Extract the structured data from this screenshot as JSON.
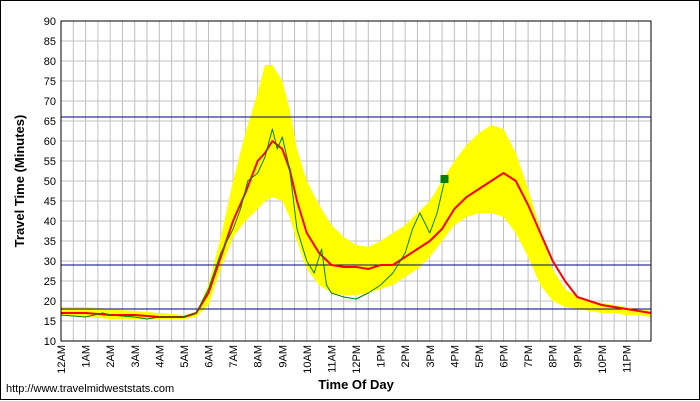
{
  "footer": {
    "url": "http://www.travelmidweststats.com"
  },
  "chart_data": {
    "type": "line",
    "title": "",
    "xlabel": "Time Of Day",
    "ylabel": "Travel Time (Minutes)",
    "ylim": [
      10,
      90
    ],
    "xlim": [
      0,
      24
    ],
    "grid": true,
    "y_ticks": [
      10,
      15,
      20,
      25,
      30,
      35,
      40,
      45,
      50,
      55,
      60,
      65,
      70,
      75,
      80,
      85,
      90
    ],
    "x_ticks": [
      {
        "value": 0,
        "label": "12AM"
      },
      {
        "value": 1,
        "label": "1AM"
      },
      {
        "value": 2,
        "label": "2AM"
      },
      {
        "value": 3,
        "label": "3AM"
      },
      {
        "value": 4,
        "label": "4AM"
      },
      {
        "value": 5,
        "label": "5AM"
      },
      {
        "value": 6,
        "label": "6AM"
      },
      {
        "value": 7,
        "label": "7AM"
      },
      {
        "value": 8,
        "label": "8AM"
      },
      {
        "value": 9,
        "label": "9AM"
      },
      {
        "value": 10,
        "label": "10AM"
      },
      {
        "value": 11,
        "label": "11AM"
      },
      {
        "value": 12,
        "label": "12PM"
      },
      {
        "value": 13,
        "label": "1PM"
      },
      {
        "value": 14,
        "label": "2PM"
      },
      {
        "value": 15,
        "label": "3PM"
      },
      {
        "value": 16,
        "label": "4PM"
      },
      {
        "value": 17,
        "label": "5PM"
      },
      {
        "value": 18,
        "label": "6PM"
      },
      {
        "value": 19,
        "label": "7PM"
      },
      {
        "value": 20,
        "label": "8PM"
      },
      {
        "value": 21,
        "label": "9PM"
      },
      {
        "value": 22,
        "label": "10PM"
      },
      {
        "value": 23,
        "label": "11PM"
      }
    ],
    "reference_lines": [
      {
        "y": 66,
        "color": "#000080"
      },
      {
        "y": 29,
        "color": "#000080"
      },
      {
        "y": 18,
        "color": "#000080"
      }
    ],
    "band": {
      "color": "#ffff00",
      "x": [
        0,
        1,
        2,
        3,
        4,
        5,
        5.5,
        6,
        6.5,
        7,
        7.5,
        8,
        8.3,
        8.6,
        9,
        9.3,
        9.6,
        10,
        10.5,
        11,
        11.5,
        12,
        12.5,
        13,
        13.5,
        14,
        14.5,
        15,
        15.5,
        16,
        16.5,
        17,
        17.5,
        18,
        18.5,
        19,
        19.5,
        20,
        20.5,
        21,
        21.5,
        22,
        22.5,
        23,
        23.5,
        24
      ],
      "upper": [
        18.5,
        18.5,
        18,
        17.5,
        17,
        16.5,
        17,
        24,
        36,
        50,
        62,
        72,
        79,
        79,
        75,
        68,
        58,
        50,
        44,
        39,
        36,
        34,
        33.5,
        35,
        37,
        39,
        42,
        45,
        50,
        55,
        59,
        62,
        64,
        63,
        57,
        48,
        38,
        28,
        23,
        21,
        20,
        19.5,
        19,
        18.5,
        18,
        17.5
      ],
      "lower": [
        16.5,
        16,
        15.5,
        15.5,
        15.5,
        15.5,
        16,
        19,
        28,
        36,
        40,
        43,
        45,
        46,
        45,
        41,
        35,
        28,
        24,
        22,
        21.5,
        21.5,
        22,
        23,
        24,
        26,
        28,
        31,
        35,
        39,
        41,
        42,
        42,
        41,
        37,
        31,
        24,
        20,
        18.5,
        18,
        17.5,
        17,
        17,
        16.5,
        16.5,
        16
      ]
    },
    "series": [
      {
        "color": "#ff0000",
        "width": 2,
        "x": [
          0,
          1,
          2,
          3,
          4,
          5,
          5.5,
          6,
          6.5,
          7,
          7.5,
          8,
          8.3,
          8.6,
          9,
          9.3,
          9.6,
          10,
          10.5,
          11,
          11.5,
          12,
          12.5,
          13,
          13.5,
          14,
          14.5,
          15,
          15.5,
          16,
          16.5,
          17,
          17.5,
          18,
          18.5,
          19,
          19.5,
          20,
          20.5,
          21,
          21.5,
          22,
          22.5,
          23,
          23.5,
          24
        ],
        "y": [
          17,
          17,
          16.5,
          16.5,
          16,
          16,
          17,
          22,
          31,
          40,
          47,
          55,
          57,
          60,
          58,
          53,
          45,
          37,
          32,
          29,
          28.5,
          28.5,
          28,
          29,
          29,
          31,
          33,
          35,
          38,
          43,
          46,
          48,
          50,
          52,
          50,
          44,
          37,
          30,
          25,
          21,
          20,
          19,
          18.5,
          18,
          17.5,
          17
        ]
      },
      {
        "color": "#008000",
        "width": 1,
        "x": [
          0,
          1,
          1.7,
          2,
          3,
          3.5,
          4,
          4.5,
          5,
          5.5,
          6,
          6.5,
          7,
          7.3,
          7.6,
          8,
          8.3,
          8.6,
          8.8,
          9,
          9.3,
          9.6,
          10,
          10.3,
          10.6,
          10.8,
          11,
          11.5,
          12,
          12.5,
          13,
          13.5,
          14,
          14.3,
          14.6,
          15,
          15.3,
          15.6
        ],
        "y": [
          16.5,
          16,
          17,
          16.5,
          16,
          15.5,
          16,
          16,
          16,
          17,
          23,
          32,
          38,
          43,
          50,
          52,
          56,
          63,
          58,
          61,
          53,
          38,
          30,
          27,
          33,
          24,
          22,
          21,
          20.5,
          22,
          24,
          27,
          32,
          38,
          42,
          37,
          42,
          50
        ]
      }
    ],
    "marker": {
      "x": 15.6,
      "y": 50.5,
      "color": "#008000"
    }
  }
}
